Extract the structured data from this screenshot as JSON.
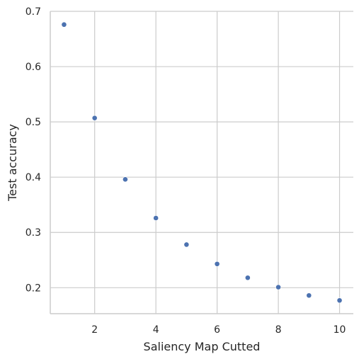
{
  "chart_data": {
    "type": "scatter",
    "xlabel": "Saliency Map Cutted",
    "ylabel": "Test accuracy",
    "xlim": [
      0.55,
      10.45
    ],
    "ylim": [
      0.153,
      0.7
    ],
    "xticks": [
      2,
      4,
      6,
      8,
      10
    ],
    "yticks": [
      0.2,
      0.3,
      0.4,
      0.5,
      0.6,
      0.7
    ],
    "xtick_labels": [
      "2",
      "4",
      "6",
      "8",
      "10"
    ],
    "ytick_labels": [
      "0.2",
      "0.3",
      "0.4",
      "0.5",
      "0.6",
      "0.7"
    ],
    "grid": true,
    "series": [
      {
        "x": [
          1,
          2,
          3,
          4,
          5,
          6,
          7,
          8,
          9,
          10
        ],
        "y": [
          0.676,
          0.507,
          0.396,
          0.326,
          0.278,
          0.243,
          0.218,
          0.201,
          0.186,
          0.177
        ],
        "color": "#4c72b0"
      }
    ]
  }
}
